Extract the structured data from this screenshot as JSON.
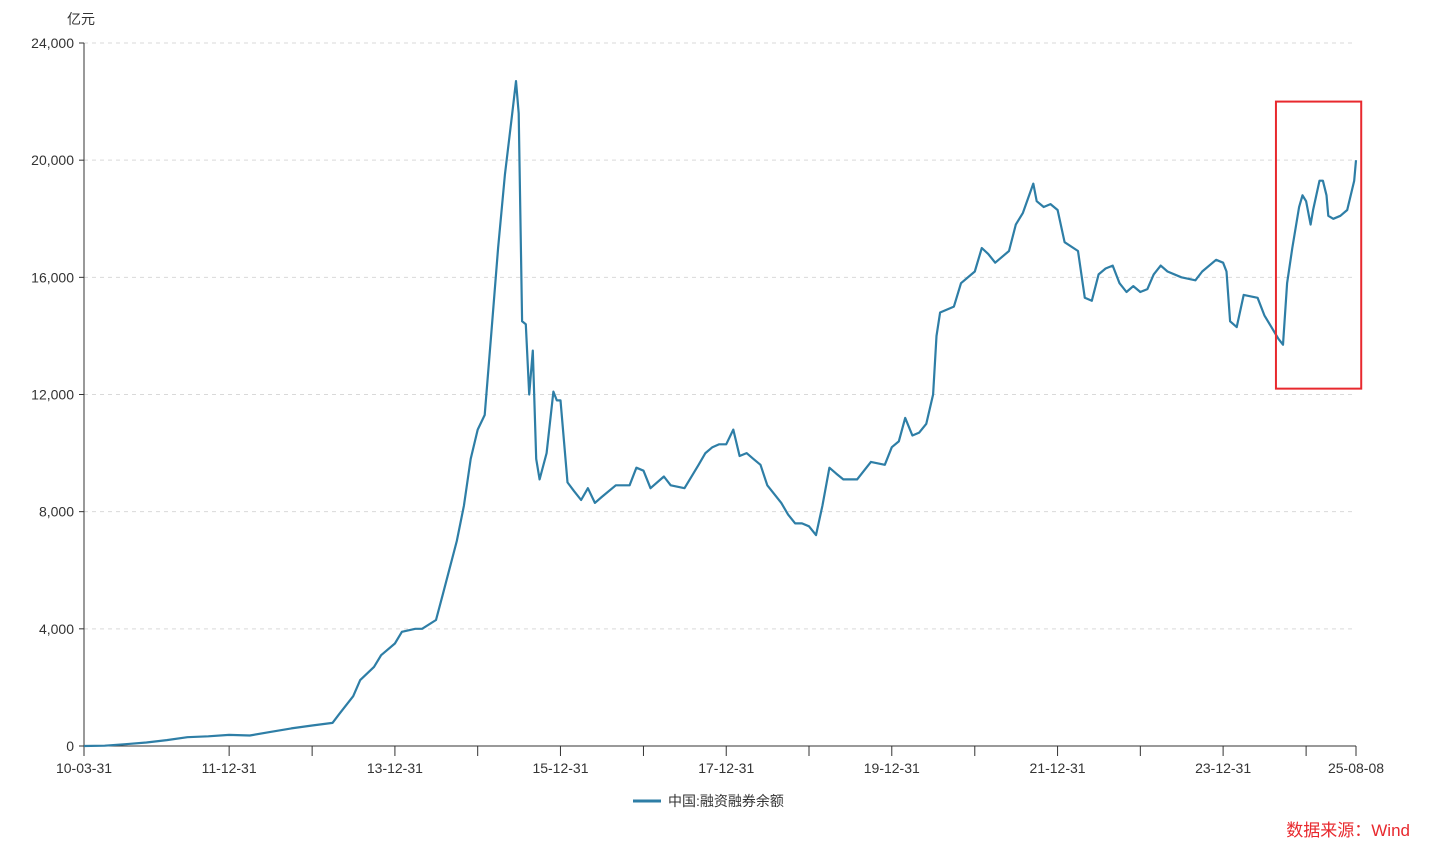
{
  "chart_data": {
    "type": "line",
    "y_unit": "亿元",
    "ylim": [
      0,
      24000
    ],
    "y_ticks": [
      0,
      4000,
      8000,
      12000,
      16000,
      20000,
      24000
    ],
    "y_tick_labels": [
      "0",
      "4,000",
      "8,000",
      "12,000",
      "16,000",
      "20,000",
      "24,000"
    ],
    "x_range": [
      "2010-03-31",
      "2025-08-08"
    ],
    "x_ticks": [
      "2010-03-31",
      "2011-12-31",
      "2013-12-31",
      "2015-12-31",
      "2017-12-31",
      "2019-12-31",
      "2021-12-31",
      "2023-12-31",
      "2025-08-08"
    ],
    "x_tick_labels": [
      "10-03-31",
      "11-12-31",
      "13-12-31",
      "15-12-31",
      "17-12-31",
      "19-12-31",
      "21-12-31",
      "23-12-31",
      "25-08-08"
    ],
    "grid": "horizontal-dashed",
    "legend_position": "bottom-center",
    "color": "#2e7ea6",
    "series": [
      {
        "name": "中国:融资融券余额",
        "points": [
          [
            "2010-03-31",
            0
          ],
          [
            "2010-06-30",
            10
          ],
          [
            "2010-09-30",
            60
          ],
          [
            "2010-12-31",
            120
          ],
          [
            "2011-03-31",
            200
          ],
          [
            "2011-06-30",
            300
          ],
          [
            "2011-09-30",
            330
          ],
          [
            "2011-12-31",
            380
          ],
          [
            "2012-03-31",
            360
          ],
          [
            "2012-06-30",
            480
          ],
          [
            "2012-09-30",
            600
          ],
          [
            "2012-12-31",
            700
          ],
          [
            "2013-03-31",
            790
          ],
          [
            "2013-04-30",
            1100
          ],
          [
            "2013-06-30",
            1700
          ],
          [
            "2013-07-31",
            2250
          ],
          [
            "2013-09-30",
            2700
          ],
          [
            "2013-10-31",
            3100
          ],
          [
            "2013-12-31",
            3500
          ],
          [
            "2014-01-31",
            3900
          ],
          [
            "2014-03-31",
            4000
          ],
          [
            "2014-04-30",
            4000
          ],
          [
            "2014-06-30",
            4300
          ],
          [
            "2014-07-31",
            5200
          ],
          [
            "2014-09-30",
            7000
          ],
          [
            "2014-10-31",
            8200
          ],
          [
            "2014-11-30",
            9800
          ],
          [
            "2014-12-31",
            10800
          ],
          [
            "2015-01-31",
            11300
          ],
          [
            "2015-02-28",
            14000
          ],
          [
            "2015-03-31",
            17000
          ],
          [
            "2015-04-30",
            19500
          ],
          [
            "2015-05-31",
            21500
          ],
          [
            "2015-06-18",
            22700
          ],
          [
            "2015-06-30",
            21600
          ],
          [
            "2015-07-15",
            14500
          ],
          [
            "2015-07-31",
            14400
          ],
          [
            "2015-08-15",
            12000
          ],
          [
            "2015-08-31",
            13500
          ],
          [
            "2015-09-15",
            9800
          ],
          [
            "2015-09-30",
            9100
          ],
          [
            "2015-10-31",
            10000
          ],
          [
            "2015-11-30",
            12100
          ],
          [
            "2015-12-15",
            11800
          ],
          [
            "2015-12-31",
            11800
          ],
          [
            "2016-01-31",
            9000
          ],
          [
            "2016-02-29",
            8700
          ],
          [
            "2016-03-31",
            8400
          ],
          [
            "2016-04-30",
            8800
          ],
          [
            "2016-05-31",
            8300
          ],
          [
            "2016-06-30",
            8500
          ],
          [
            "2016-08-31",
            8900
          ],
          [
            "2016-10-31",
            8900
          ],
          [
            "2016-11-30",
            9500
          ],
          [
            "2016-12-31",
            9400
          ],
          [
            "2017-01-31",
            8800
          ],
          [
            "2017-03-31",
            9200
          ],
          [
            "2017-04-30",
            8900
          ],
          [
            "2017-06-30",
            8800
          ],
          [
            "2017-08-31",
            9600
          ],
          [
            "2017-09-30",
            10000
          ],
          [
            "2017-10-31",
            10200
          ],
          [
            "2017-11-30",
            10300
          ],
          [
            "2017-12-31",
            10300
          ],
          [
            "2018-01-31",
            10800
          ],
          [
            "2018-02-28",
            9900
          ],
          [
            "2018-03-31",
            10000
          ],
          [
            "2018-04-30",
            9800
          ],
          [
            "2018-05-31",
            9600
          ],
          [
            "2018-06-30",
            8900
          ],
          [
            "2018-08-31",
            8300
          ],
          [
            "2018-09-30",
            7900
          ],
          [
            "2018-10-31",
            7600
          ],
          [
            "2018-11-30",
            7600
          ],
          [
            "2018-12-31",
            7500
          ],
          [
            "2019-01-31",
            7200
          ],
          [
            "2019-02-28",
            8200
          ],
          [
            "2019-03-31",
            9500
          ],
          [
            "2019-04-30",
            9300
          ],
          [
            "2019-05-31",
            9100
          ],
          [
            "2019-07-31",
            9100
          ],
          [
            "2019-09-30",
            9700
          ],
          [
            "2019-11-30",
            9600
          ],
          [
            "2019-12-31",
            10200
          ],
          [
            "2020-01-31",
            10400
          ],
          [
            "2020-02-28",
            11200
          ],
          [
            "2020-03-31",
            10600
          ],
          [
            "2020-04-30",
            10700
          ],
          [
            "2020-05-31",
            11000
          ],
          [
            "2020-06-30",
            12000
          ],
          [
            "2020-07-15",
            14000
          ],
          [
            "2020-07-31",
            14800
          ],
          [
            "2020-09-30",
            15000
          ],
          [
            "2020-10-31",
            15800
          ],
          [
            "2020-12-31",
            16200
          ],
          [
            "2021-01-31",
            17000
          ],
          [
            "2021-02-28",
            16800
          ],
          [
            "2021-03-31",
            16500
          ],
          [
            "2021-05-31",
            16900
          ],
          [
            "2021-06-30",
            17800
          ],
          [
            "2021-07-31",
            18200
          ],
          [
            "2021-09-15",
            19200
          ],
          [
            "2021-09-30",
            18600
          ],
          [
            "2021-10-31",
            18400
          ],
          [
            "2021-11-30",
            18500
          ],
          [
            "2021-12-31",
            18300
          ],
          [
            "2022-01-31",
            17200
          ],
          [
            "2022-03-31",
            16900
          ],
          [
            "2022-04-30",
            15300
          ],
          [
            "2022-05-31",
            15200
          ],
          [
            "2022-06-30",
            16100
          ],
          [
            "2022-07-31",
            16300
          ],
          [
            "2022-08-31",
            16400
          ],
          [
            "2022-09-30",
            15800
          ],
          [
            "2022-10-31",
            15500
          ],
          [
            "2022-11-30",
            15700
          ],
          [
            "2022-12-31",
            15500
          ],
          [
            "2023-01-31",
            15600
          ],
          [
            "2023-02-28",
            16100
          ],
          [
            "2023-03-31",
            16400
          ],
          [
            "2023-04-30",
            16200
          ],
          [
            "2023-06-30",
            16000
          ],
          [
            "2023-08-31",
            15900
          ],
          [
            "2023-09-30",
            16200
          ],
          [
            "2023-11-30",
            16600
          ],
          [
            "2023-12-31",
            16500
          ],
          [
            "2024-01-15",
            16200
          ],
          [
            "2024-01-31",
            14500
          ],
          [
            "2024-02-29",
            14300
          ],
          [
            "2024-03-31",
            15400
          ],
          [
            "2024-05-31",
            15300
          ],
          [
            "2024-06-30",
            14700
          ],
          [
            "2024-07-31",
            14300
          ],
          [
            "2024-08-31",
            13900
          ],
          [
            "2024-09-20",
            13700
          ],
          [
            "2024-10-08",
            15800
          ],
          [
            "2024-10-31",
            17000
          ],
          [
            "2024-11-30",
            18400
          ],
          [
            "2024-12-15",
            18800
          ],
          [
            "2024-12-31",
            18600
          ],
          [
            "2025-01-20",
            17800
          ],
          [
            "2025-01-31",
            18300
          ],
          [
            "2025-02-28",
            19300
          ],
          [
            "2025-03-15",
            19300
          ],
          [
            "2025-03-31",
            18800
          ],
          [
            "2025-04-08",
            18100
          ],
          [
            "2025-04-30",
            18000
          ],
          [
            "2025-05-31",
            18100
          ],
          [
            "2025-06-30",
            18300
          ],
          [
            "2025-07-31",
            19300
          ],
          [
            "2025-08-08",
            20000
          ]
        ]
      }
    ],
    "annotation": {
      "type": "highlight-box",
      "color": "#e8292e",
      "x_range": [
        "2024-08-20",
        "2025-08-31"
      ],
      "y_range": [
        12200,
        22000
      ]
    }
  },
  "source_note": "数据来源：Wind"
}
